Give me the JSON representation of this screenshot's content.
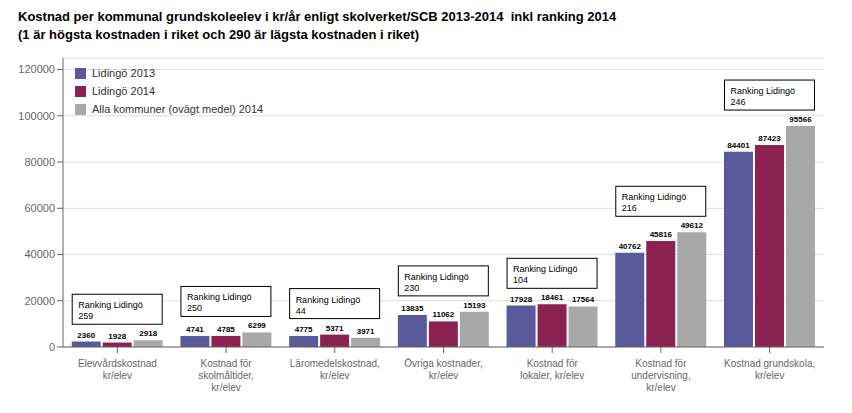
{
  "chart_data": {
    "type": "bar",
    "title": "Kostnad per kommunal grundskoleelev i kr/år enligt skolverket/SCB 2013-2014  inkl ranking 2014",
    "subtitle": "(1 är högsta kostnaden i riket och 290 är lägsta kostnaden i riket)",
    "categories": [
      "Elevvårdskostnad kr/elev",
      "Kostnad för skolmåltider,\nkr/elev",
      "Läromedelskostnad,\nkr/elev",
      "Övriga kostnader, kr/elev",
      "Kostnad för lokaler, kr/elev",
      "Kostnad för undervisning,\nkr/elev",
      "Kostnad grundskola,\nkr/elev"
    ],
    "series": [
      {
        "name": "Lidingö 2013",
        "color": "#5a5a9a",
        "values": [
          2360,
          4741,
          4775,
          13835,
          17928,
          40762,
          84401
        ]
      },
      {
        "name": "Lidingö 2014",
        "color": "#8b2252",
        "values": [
          1928,
          4785,
          5371,
          11062,
          18461,
          45816,
          87423
        ]
      },
      {
        "name": "Alla kommuner (ovägt medel) 2014",
        "color": "#a8a8a8",
        "values": [
          2918,
          6299,
          3971,
          15193,
          17564,
          49612,
          95566
        ]
      }
    ],
    "ylim": [
      0,
      125000
    ],
    "yticks": [
      0,
      20000,
      40000,
      60000,
      80000,
      100000,
      120000
    ],
    "grid": true,
    "legend": "upper left",
    "data_labels": true,
    "annotations": [
      {
        "x": "Elevvårdskostnad kr/elev",
        "text": "Ranking Lidingö\n259"
      },
      {
        "x": "Kostnad för skolmåltider,\nkr/elev",
        "text": "Ranking Lidingö\n250"
      },
      {
        "x": "Läromedelskostnad,\nkr/elev",
        "text": "Ranking Lidingö\n44"
      },
      {
        "x": "Övriga kostnader, kr/elev",
        "text": "Ranking Lidingö\n230"
      },
      {
        "x": "Kostnad för lokaler, kr/elev",
        "text": "Ranking Lidingö\n104"
      },
      {
        "x": "Kostnad för undervisning,\nkr/elev",
        "text": "Ranking Lidingö\n216"
      },
      {
        "x": "Kostnad grundskola,\nkr/elev",
        "text": "Ranking Lidingö\n246"
      }
    ]
  }
}
